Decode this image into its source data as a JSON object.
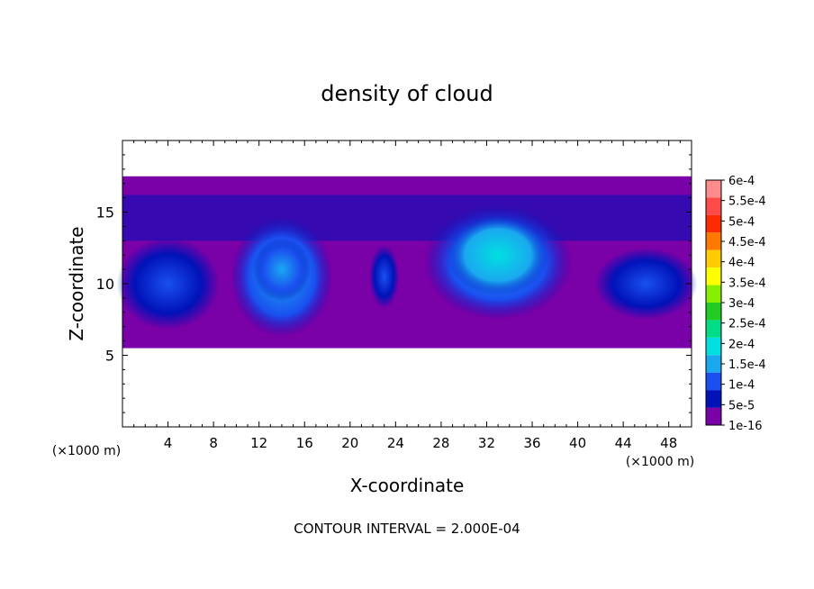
{
  "chart_data": {
    "type": "heatmap",
    "title": "density of cloud",
    "xlabel": "X-coordinate",
    "ylabel": "Z-coordinate",
    "x_unit_left": "(×1000 m)",
    "x_unit_right": "(×1000 m)",
    "xlim": [
      0,
      50
    ],
    "ylim": [
      0,
      20
    ],
    "x_ticks": [
      4,
      8,
      12,
      16,
      20,
      24,
      28,
      32,
      36,
      40,
      44,
      48
    ],
    "y_ticks": [
      5,
      10,
      15
    ],
    "footer": "CONTOUR INTERVAL = 2.000E-04",
    "colorbar": {
      "labels": [
        "6e-4",
        "5.5e-4",
        "5e-4",
        "4.5e-4",
        "4e-4",
        "3.5e-4",
        "3e-4",
        "2.5e-4",
        "2e-4",
        "1.5e-4",
        "1e-4",
        "5e-5",
        "1e-16"
      ],
      "colors": [
        "#ff8c8c",
        "#ff4a4a",
        "#ff2a00",
        "#ff7800",
        "#ffcc00",
        "#ffff00",
        "#88ee00",
        "#22cc22",
        "#00dd88",
        "#00e0e0",
        "#1aa8f0",
        "#1a50f0",
        "#0012b8",
        "#7a00a8"
      ]
    },
    "cloud_layer": {
      "z_bottom": 5.5,
      "z_top": 17.5,
      "background_color": "#7a00a8",
      "cells": [
        {
          "x": 4,
          "z": 10,
          "rx": 4.5,
          "rz": 3.2,
          "level": 0.3
        },
        {
          "x": 14,
          "z": 10.5,
          "rx": 4.5,
          "rz": 4.2,
          "level": 0.55
        },
        {
          "x": 14,
          "z": 11,
          "rx": 2.5,
          "rz": 2.2,
          "level": 0.8
        },
        {
          "x": 23,
          "z": 10.5,
          "rx": 1.3,
          "rz": 2.2,
          "level": 0.35
        },
        {
          "x": 33,
          "z": 11.5,
          "rx": 6.5,
          "rz": 4.0,
          "level": 0.7
        },
        {
          "x": 33,
          "z": 12,
          "rx": 4.5,
          "rz": 2.8,
          "level": 0.95
        },
        {
          "x": 46,
          "z": 10,
          "rx": 4.5,
          "rz": 2.5,
          "level": 0.3
        }
      ]
    }
  }
}
